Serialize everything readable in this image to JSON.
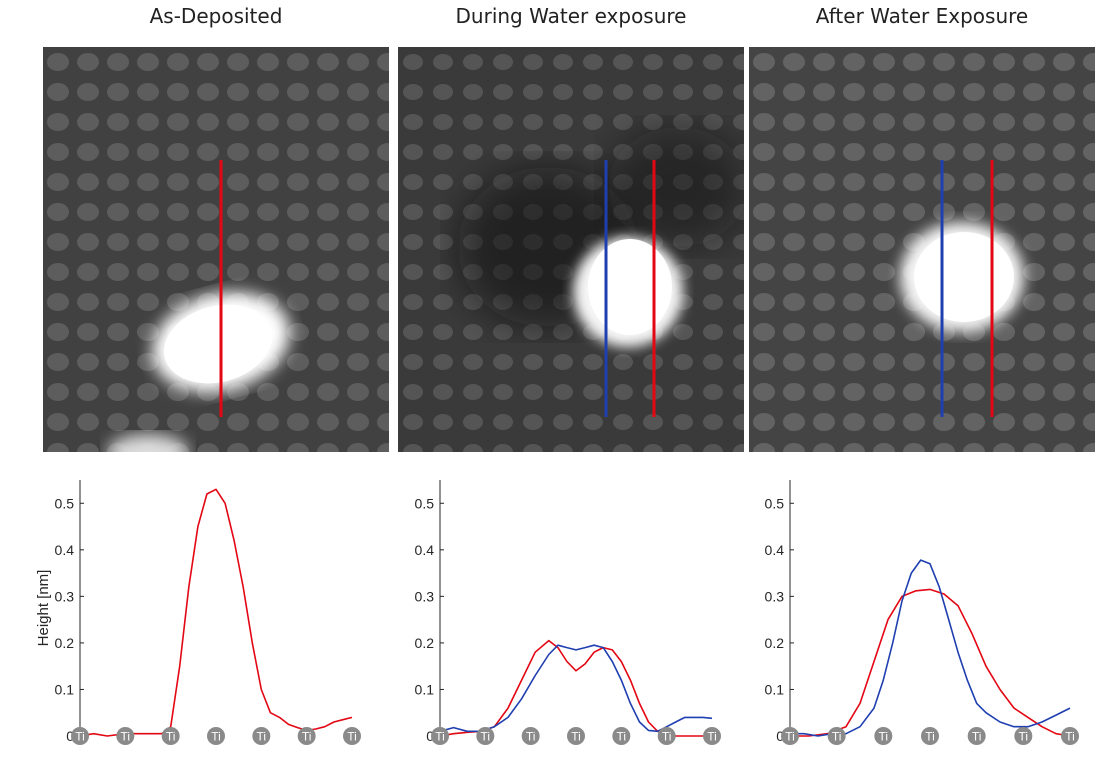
{
  "panels": [
    {
      "title": "As-Deposited"
    },
    {
      "title": "During Water exposure"
    },
    {
      "title": "After Water Exposure"
    }
  ],
  "colors": {
    "red": "#e30613",
    "blue": "#1f3fb0"
  },
  "chart_data": [
    {
      "type": "line",
      "title": "",
      "xlabel": "",
      "ylabel": "Height [nm]",
      "ylim": [
        0,
        0.55
      ],
      "yticks": [
        "0",
        "0.1",
        "0.2",
        "0.3",
        "0.4",
        "0.5"
      ],
      "x_markers": [
        "Ti",
        "Ti",
        "Ti",
        "Ti",
        "Ti",
        "Ti",
        "Ti"
      ],
      "series": [
        {
          "color": "red",
          "x": [
            0,
            0.3,
            0.6,
            1.0,
            1.5,
            1.8,
            2.0,
            2.2,
            2.4,
            2.6,
            2.8,
            3.0,
            3.2,
            3.4,
            3.6,
            3.8,
            4.0,
            4.2,
            4.4,
            4.6,
            4.8,
            5.0,
            5.2,
            5.4,
            5.6,
            5.8,
            6.0
          ],
          "y": [
            0.0,
            0.005,
            0.0,
            0.005,
            0.005,
            0.005,
            0.02,
            0.15,
            0.32,
            0.45,
            0.52,
            0.53,
            0.5,
            0.42,
            0.32,
            0.2,
            0.1,
            0.05,
            0.04,
            0.025,
            0.018,
            0.012,
            0.015,
            0.02,
            0.03,
            0.035,
            0.04
          ]
        }
      ]
    },
    {
      "type": "line",
      "title": "",
      "xlabel": "",
      "ylabel": "",
      "ylim": [
        0,
        0.55
      ],
      "yticks": [
        "0",
        "0.1",
        "0.2",
        "0.3",
        "0.4",
        "0.5"
      ],
      "x_markers": [
        "Ti",
        "Ti",
        "Ti",
        "Ti",
        "Ti",
        "Ti",
        "Ti"
      ],
      "series": [
        {
          "color": "red",
          "x": [
            0,
            0.3,
            0.6,
            0.9,
            1.2,
            1.5,
            1.8,
            2.1,
            2.4,
            2.6,
            2.8,
            3.0,
            3.2,
            3.4,
            3.6,
            3.8,
            4.0,
            4.2,
            4.4,
            4.6,
            4.8,
            5.0,
            5.2,
            5.4,
            5.6,
            5.8,
            6.0
          ],
          "y": [
            0.0,
            0.005,
            0.008,
            0.01,
            0.02,
            0.06,
            0.12,
            0.18,
            0.205,
            0.19,
            0.16,
            0.14,
            0.155,
            0.18,
            0.19,
            0.185,
            0.16,
            0.12,
            0.07,
            0.03,
            0.01,
            0.005,
            0.0,
            0.0,
            0.0,
            0.0,
            0.0
          ]
        },
        {
          "color": "blue",
          "x": [
            0,
            0.3,
            0.6,
            0.9,
            1.2,
            1.5,
            1.8,
            2.1,
            2.4,
            2.6,
            2.8,
            3.0,
            3.2,
            3.4,
            3.6,
            3.8,
            4.0,
            4.2,
            4.4,
            4.6,
            4.8,
            5.0,
            5.2,
            5.4,
            5.6,
            5.8,
            6.0
          ],
          "y": [
            0.01,
            0.018,
            0.01,
            0.01,
            0.02,
            0.04,
            0.08,
            0.13,
            0.175,
            0.195,
            0.19,
            0.185,
            0.19,
            0.195,
            0.19,
            0.16,
            0.12,
            0.07,
            0.03,
            0.012,
            0.01,
            0.02,
            0.03,
            0.04,
            0.04,
            0.04,
            0.038
          ]
        }
      ]
    },
    {
      "type": "line",
      "title": "",
      "xlabel": "",
      "ylabel": "",
      "ylim": [
        0,
        0.55
      ],
      "yticks": [
        "0",
        "0.1",
        "0.2",
        "0.3",
        "0.4",
        "0.5"
      ],
      "x_markers": [
        "Ti",
        "Ti",
        "Ti",
        "Ti",
        "Ti",
        "Ti",
        "Ti"
      ],
      "series": [
        {
          "color": "red",
          "x": [
            0,
            0.4,
            0.8,
            1.2,
            1.5,
            1.8,
            2.1,
            2.4,
            2.7,
            3.0,
            3.3,
            3.6,
            3.9,
            4.2,
            4.5,
            4.8,
            5.1,
            5.4,
            5.7,
            6.0
          ],
          "y": [
            0.0,
            0.0,
            0.005,
            0.02,
            0.07,
            0.16,
            0.25,
            0.3,
            0.312,
            0.315,
            0.305,
            0.28,
            0.22,
            0.15,
            0.1,
            0.06,
            0.04,
            0.02,
            0.005,
            0.0
          ]
        },
        {
          "color": "blue",
          "x": [
            0,
            0.3,
            0.6,
            0.9,
            1.2,
            1.5,
            1.8,
            2.0,
            2.2,
            2.4,
            2.6,
            2.8,
            3.0,
            3.2,
            3.4,
            3.6,
            3.8,
            4.0,
            4.2,
            4.5,
            4.8,
            5.1,
            5.4,
            5.7,
            6.0
          ],
          "y": [
            0.005,
            0.005,
            0.0,
            0.005,
            0.005,
            0.02,
            0.06,
            0.12,
            0.2,
            0.29,
            0.35,
            0.378,
            0.37,
            0.32,
            0.25,
            0.18,
            0.12,
            0.07,
            0.05,
            0.03,
            0.02,
            0.02,
            0.03,
            0.045,
            0.06
          ]
        }
      ]
    }
  ]
}
